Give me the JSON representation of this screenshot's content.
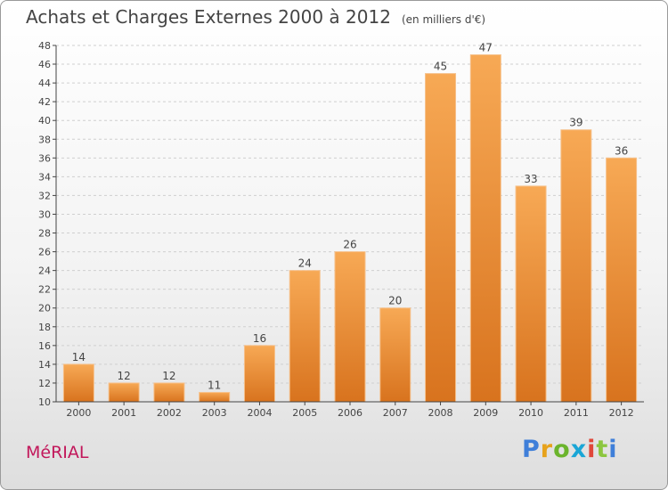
{
  "header": {
    "title": "Achats et Charges Externes 2000 à 2012",
    "subtitle": "(en milliers d'€)"
  },
  "footer": {
    "commune": "MéRIAL",
    "logo_letters": [
      "P",
      "r",
      "o",
      "x",
      "i",
      "t",
      "i"
    ]
  },
  "colors": {
    "bar_top": "#f7a955",
    "bar_bottom": "#d8731e",
    "commune": "#c2185b",
    "axis": "#444444"
  },
  "chart_data": {
    "type": "bar",
    "categories": [
      "2000",
      "2001",
      "2002",
      "2003",
      "2004",
      "2005",
      "2006",
      "2007",
      "2008",
      "2009",
      "2010",
      "2011",
      "2012"
    ],
    "values": [
      14,
      12,
      12,
      11,
      16,
      24,
      26,
      20,
      45,
      47,
      33,
      39,
      36
    ],
    "ylim": [
      10,
      48
    ],
    "yticks": [
      10,
      12,
      14,
      16,
      18,
      20,
      22,
      24,
      26,
      28,
      30,
      32,
      34,
      36,
      38,
      40,
      42,
      44,
      46,
      48
    ],
    "grid": true,
    "title": "Achats et Charges Externes 2000 à 2012",
    "subtitle": "(en milliers d'€)",
    "xlabel": "",
    "ylabel": ""
  }
}
